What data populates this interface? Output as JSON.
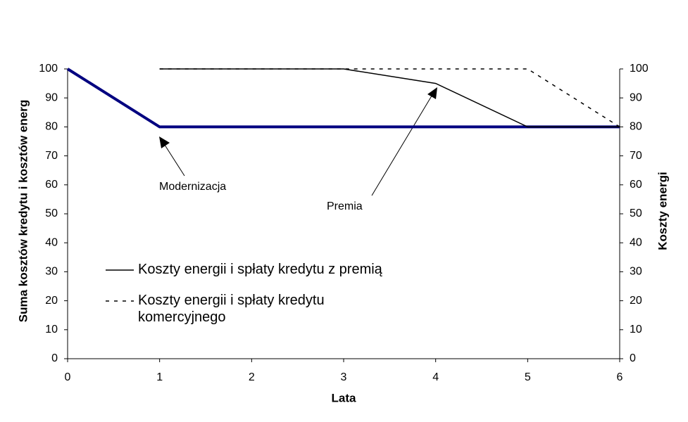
{
  "chart_data": {
    "type": "line",
    "x": [
      0,
      1,
      2,
      3,
      4,
      5,
      6
    ],
    "series": [
      {
        "color": "#000080",
        "values": [
          100,
          80,
          80,
          80,
          80,
          80,
          80
        ]
      },
      {
        "name": "Koszty energii i spłaty kredytu z premią",
        "color": "#000000",
        "dash": "solid",
        "values": [
          null,
          100,
          100,
          100,
          95,
          80,
          80
        ]
      },
      {
        "name": "Koszty energii i spłaty kredytu komercyjnego",
        "color": "#000000",
        "dash": "dashed",
        "values": [
          null,
          100,
          100,
          100,
          100,
          100,
          80
        ]
      }
    ],
    "xlabel": "Lata",
    "ylabel": "Suma kosztów kredytu i kosztów energ",
    "y2label": "Koszty energi",
    "xlim": [
      0,
      6
    ],
    "xticks": [
      0,
      1,
      2,
      3,
      4,
      5,
      6
    ],
    "ylim": [
      0,
      100
    ],
    "yticks": [
      0,
      10,
      20,
      30,
      40,
      50,
      60,
      70,
      80,
      90,
      100
    ],
    "y2lim": [
      0,
      100
    ],
    "y2ticks": [
      0,
      10,
      20,
      30,
      40,
      50,
      60,
      70,
      80,
      90,
      100
    ],
    "annotations": [
      "Modernizacja",
      "Premia"
    ]
  }
}
